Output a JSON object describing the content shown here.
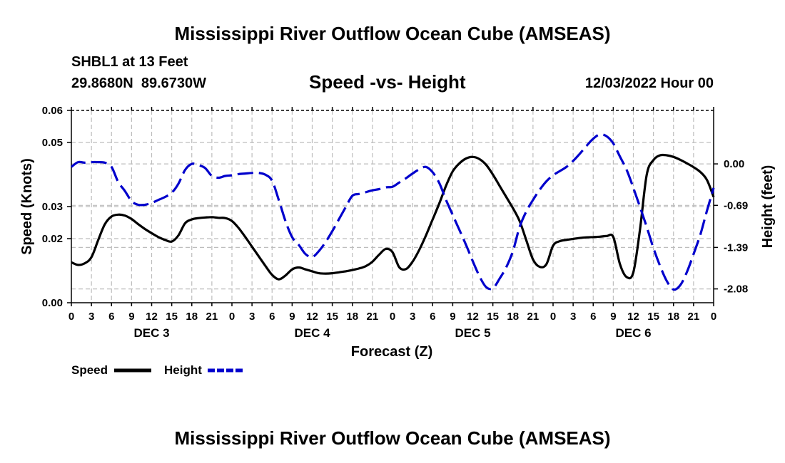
{
  "page": {
    "title": "Mississippi River Outflow Ocean Cube (AMSEAS)",
    "station": "SHBL1 at 13 Feet",
    "coords": "29.8680N  89.6730W",
    "subtitle": "Speed -vs- Height",
    "datetime": "12/03/2022 Hour 00",
    "footer_title": "Mississippi River Outflow Ocean Cube (AMSEAS)"
  },
  "chart_data": {
    "type": "line",
    "title": "Speed -vs- Height",
    "xlabel": "Forecast (Z)",
    "ylabel": "Speed (Knots)",
    "y2label": "Height (feet)",
    "xlim": [
      0,
      96
    ],
    "ylim": [
      0,
      0.06
    ],
    "y2lim": [
      -2.31,
      0.89
    ],
    "grid": true,
    "x_ticks": [
      0,
      3,
      6,
      9,
      12,
      15,
      18,
      21,
      24,
      27,
      30,
      33,
      36,
      39,
      42,
      45,
      48,
      51,
      54,
      57,
      60,
      63,
      66,
      69,
      72,
      75,
      78,
      81,
      84,
      87,
      90,
      93,
      96
    ],
    "x_tick_labels": [
      "0",
      "3",
      "6",
      "9",
      "12",
      "15",
      "18",
      "21",
      "0",
      "3",
      "6",
      "9",
      "12",
      "15",
      "18",
      "21",
      "0",
      "3",
      "6",
      "9",
      "12",
      "15",
      "18",
      "21",
      "0",
      "3",
      "6",
      "9",
      "12",
      "15",
      "18",
      "21",
      "0"
    ],
    "day_labels": [
      {
        "label": "DEC 3",
        "at": 12
      },
      {
        "label": "DEC 4",
        "at": 36
      },
      {
        "label": "DEC 5",
        "at": 60
      },
      {
        "label": "DEC 6",
        "at": 84
      }
    ],
    "y_ticks": [
      0,
      0.02,
      0.03,
      0.05,
      0.06
    ],
    "y_tick_labels": [
      "0.00",
      "0.02",
      "0.03",
      "0.05",
      "0.06"
    ],
    "y2_ticks": [
      0.0,
      -0.69,
      -1.39,
      -2.08
    ],
    "y2_tick_labels": [
      "0.00",
      "-0.69",
      "-1.39",
      "-2.08"
    ],
    "legend": {
      "position": "bottom-left",
      "entries": [
        "Speed",
        "Height"
      ]
    },
    "series": [
      {
        "name": "Speed",
        "axis": "left",
        "color": "#000000",
        "style": "solid",
        "x": [
          0,
          1,
          2,
          3,
          4,
          5,
          6,
          7,
          8,
          9,
          10,
          11,
          12,
          13,
          14,
          15,
          16,
          17,
          18,
          19,
          20,
          21,
          22,
          23,
          24,
          25,
          26,
          27,
          28,
          29,
          30,
          31,
          32,
          33,
          34,
          35,
          36,
          37,
          38,
          39,
          40,
          41,
          42,
          43,
          44,
          45,
          46,
          47,
          48,
          49,
          50,
          51,
          52,
          53,
          54,
          55,
          56,
          57,
          58,
          59,
          60,
          61,
          62,
          63,
          64,
          65,
          66,
          67,
          68,
          69,
          70,
          71,
          72,
          73,
          74,
          75,
          76,
          77,
          78,
          79,
          80,
          81,
          82,
          83,
          84,
          85,
          86,
          87,
          88,
          89,
          90,
          91,
          92,
          93,
          94,
          95,
          96
        ],
        "values": [
          0.0126,
          0.0118,
          0.0123,
          0.0142,
          0.0195,
          0.0245,
          0.0269,
          0.0275,
          0.0272,
          0.0261,
          0.0245,
          0.023,
          0.0217,
          0.0205,
          0.0196,
          0.0191,
          0.021,
          0.0248,
          0.026,
          0.0264,
          0.0266,
          0.0267,
          0.0265,
          0.0264,
          0.0255,
          0.0233,
          0.0205,
          0.0175,
          0.0145,
          0.0115,
          0.0087,
          0.0073,
          0.0085,
          0.0104,
          0.011,
          0.0104,
          0.0098,
          0.0092,
          0.0091,
          0.0092,
          0.0095,
          0.0098,
          0.0102,
          0.0107,
          0.0114,
          0.0128,
          0.015,
          0.0168,
          0.0158,
          0.0111,
          0.0105,
          0.0128,
          0.0165,
          0.021,
          0.026,
          0.031,
          0.0365,
          0.041,
          0.0435,
          0.045,
          0.0455,
          0.0448,
          0.043,
          0.04,
          0.0365,
          0.033,
          0.0295,
          0.0255,
          0.0195,
          0.0135,
          0.0112,
          0.012,
          0.0178,
          0.0192,
          0.0196,
          0.0199,
          0.0202,
          0.0204,
          0.0205,
          0.0206,
          0.0208,
          0.0205,
          0.012,
          0.008,
          0.0095,
          0.023,
          0.04,
          0.0445,
          0.046,
          0.046,
          0.0455,
          0.0446,
          0.0435,
          0.0423,
          0.0408,
          0.0383,
          0.033
        ]
      },
      {
        "name": "Height",
        "axis": "right",
        "color": "#0000cc",
        "style": "dashed",
        "x": [
          0,
          1,
          2,
          3,
          4,
          5,
          6,
          7,
          8,
          9,
          10,
          11,
          12,
          13,
          14,
          15,
          16,
          17,
          18,
          19,
          20,
          21,
          22,
          23,
          24,
          25,
          26,
          27,
          28,
          29,
          30,
          31,
          32,
          33,
          34,
          35,
          36,
          37,
          38,
          39,
          40,
          41,
          42,
          43,
          44,
          45,
          46,
          47,
          48,
          49,
          50,
          51,
          52,
          53,
          54,
          55,
          56,
          57,
          58,
          59,
          60,
          61,
          62,
          63,
          64,
          65,
          66,
          67,
          68,
          69,
          70,
          71,
          72,
          73,
          74,
          75,
          76,
          77,
          78,
          79,
          80,
          81,
          82,
          83,
          84,
          85,
          86,
          87,
          88,
          89,
          90,
          91,
          92,
          93,
          94,
          95,
          96
        ],
        "values": [
          -0.05,
          0.03,
          0.02,
          0.03,
          0.03,
          0.02,
          -0.05,
          -0.3,
          -0.45,
          -0.62,
          -0.68,
          -0.68,
          -0.65,
          -0.6,
          -0.55,
          -0.48,
          -0.33,
          -0.1,
          0.0,
          -0.02,
          -0.07,
          -0.2,
          -0.23,
          -0.2,
          -0.19,
          -0.17,
          -0.16,
          -0.15,
          -0.15,
          -0.18,
          -0.28,
          -0.6,
          -0.95,
          -1.22,
          -1.35,
          -1.5,
          -1.55,
          -1.45,
          -1.3,
          -1.12,
          -0.92,
          -0.72,
          -0.53,
          -0.5,
          -0.47,
          -0.44,
          -0.42,
          -0.39,
          -0.38,
          -0.31,
          -0.24,
          -0.16,
          -0.09,
          -0.05,
          -0.14,
          -0.32,
          -0.6,
          -0.85,
          -1.1,
          -1.35,
          -1.62,
          -1.87,
          -2.05,
          -2.07,
          -1.91,
          -1.72,
          -1.45,
          -1.05,
          -0.79,
          -0.6,
          -0.43,
          -0.29,
          -0.19,
          -0.12,
          -0.05,
          0.05,
          0.17,
          0.3,
          0.42,
          0.49,
          0.46,
          0.34,
          0.12,
          -0.1,
          -0.4,
          -0.72,
          -1.05,
          -1.4,
          -1.7,
          -1.95,
          -2.09,
          -2.02,
          -1.8,
          -1.5,
          -1.18,
          -0.78,
          -0.4
        ]
      }
    ]
  }
}
